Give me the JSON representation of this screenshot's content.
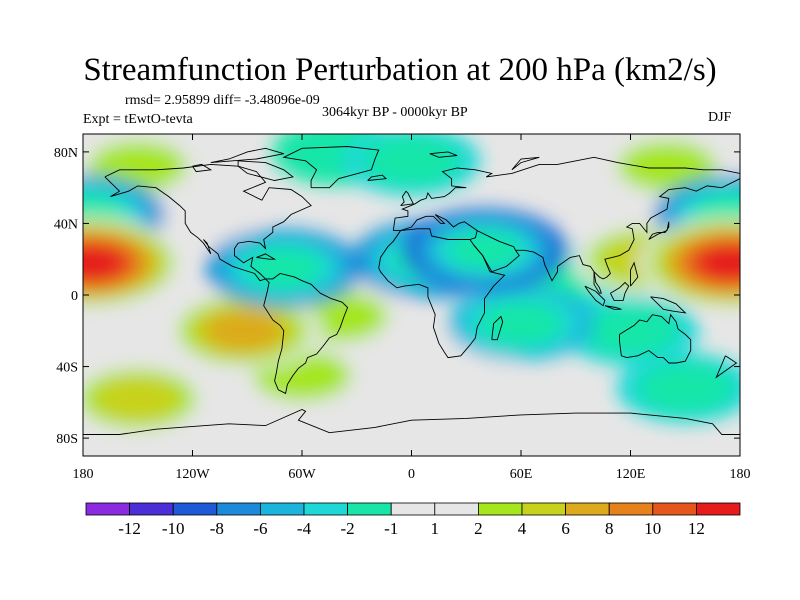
{
  "title": "Streamfunction Perturbation at 200 hPa (km2/s)",
  "stats": "rmsd= 2.95899 diff= -3.48096e-09",
  "expt": "Expt = tEwtO-tevta",
  "period": "3064kyr BP - 0000kyr BP",
  "season": "DJF",
  "x_ticks": [
    "180",
    "120W",
    "60W",
    "0",
    "60E",
    "120E",
    "180"
  ],
  "y_ticks": [
    "80N",
    "40N",
    "0",
    "40S",
    "80S"
  ],
  "colorbar": {
    "labels": [
      "-12",
      "-10",
      "-8",
      "-6",
      "-4",
      "-2",
      "-1",
      "1",
      "2",
      "4",
      "6",
      "8",
      "10",
      "12"
    ],
    "colors": [
      "#8a2be2",
      "#4b2ed8",
      "#1e5ad8",
      "#1b8ad8",
      "#1bb4dc",
      "#1ed8d8",
      "#18e6a8",
      "#e6e6e6",
      "#a6e61c",
      "#c8d21c",
      "#dcaa1c",
      "#e6821c",
      "#e6561c",
      "#e61c1c"
    ]
  },
  "map_data": {
    "projection": "cylindrical equidistant",
    "lon_range": [
      -180,
      180
    ],
    "lat_range": [
      -90,
      90
    ],
    "anomalies": [
      {
        "lon": -176,
        "lat": 18,
        "value": 12
      },
      {
        "lon": 175,
        "lat": 18,
        "value": 12
      },
      {
        "lon": 128,
        "lat": 20,
        "value": 4
      },
      {
        "lon": -178,
        "lat": 45,
        "value": -6
      },
      {
        "lon": 176,
        "lat": 45,
        "value": -6
      },
      {
        "lon": -92,
        "lat": -20,
        "value": 6
      },
      {
        "lon": -40,
        "lat": -12,
        "value": 2
      },
      {
        "lon": -60,
        "lat": -45,
        "value": 2
      },
      {
        "lon": -150,
        "lat": -58,
        "value": 4
      },
      {
        "lon": -160,
        "lat": -20,
        "value": 1
      },
      {
        "lon": 20,
        "lat": -36,
        "value": 1
      },
      {
        "lon": -70,
        "lat": 15,
        "value": -6
      },
      {
        "lon": 40,
        "lat": 25,
        "value": -8
      },
      {
        "lon": 10,
        "lat": 20,
        "value": -6
      },
      {
        "lon": 80,
        "lat": 10,
        "value": -2
      },
      {
        "lon": 60,
        "lat": -16,
        "value": -4
      },
      {
        "lon": 120,
        "lat": -20,
        "value": -2
      },
      {
        "lon": 150,
        "lat": -52,
        "value": -2
      },
      {
        "lon": 0,
        "lat": 75,
        "value": -2
      },
      {
        "lon": -40,
        "lat": 80,
        "value": -1
      },
      {
        "lon": -150,
        "lat": 72,
        "value": 2
      },
      {
        "lon": 140,
        "lat": 72,
        "value": 2
      },
      {
        "lon": -120,
        "lat": 45,
        "value": 1
      }
    ]
  }
}
